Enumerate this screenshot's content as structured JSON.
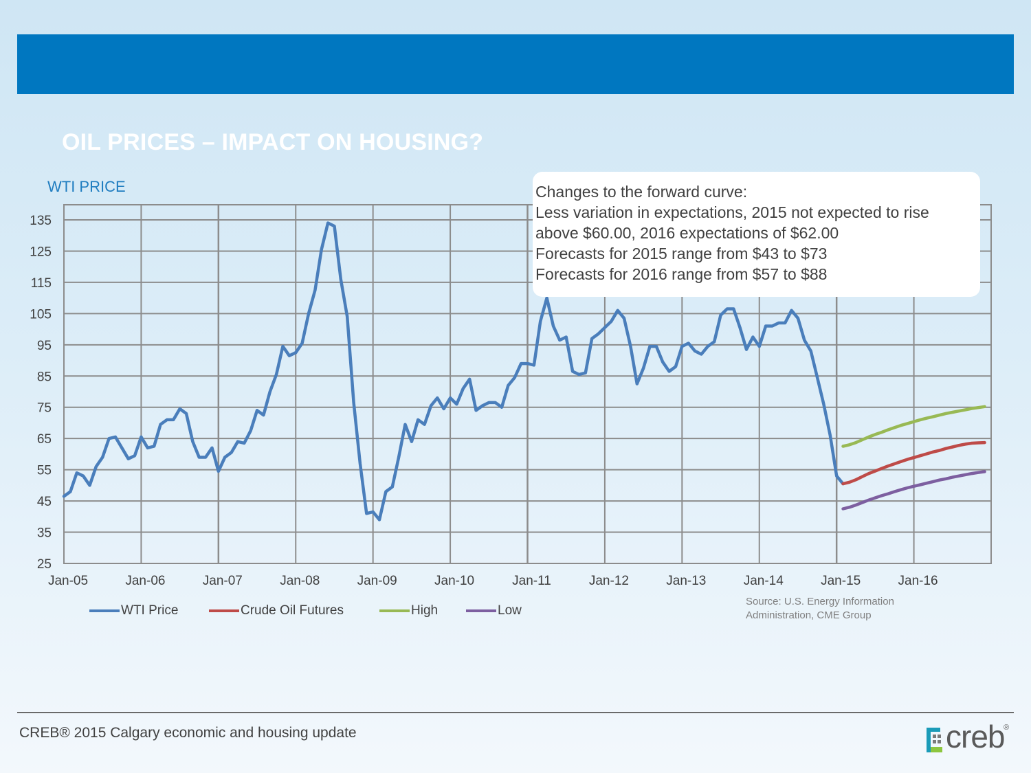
{
  "slide": {
    "title": "OIL PRICES – IMPACT ON HOUSING?",
    "chart_label": "WTI PRICE",
    "footer": "CREB® 2015 Calgary economic and housing update",
    "logo_text": "creb",
    "logo_reg": "®"
  },
  "callout": {
    "lines": [
      "Changes to the forward curve:",
      "Less variation in expectations, 2015 not expected to rise",
      "above $60.00, 2016 expectations of $62.00",
      "Forecasts for 2015 range from $43 to $73",
      "Forecasts for 2016 range from $57 to $88"
    ]
  },
  "source": {
    "lines": [
      "Source: U.S. Energy Information",
      "Administration,  CME Group"
    ]
  },
  "colors": {
    "wti": "#4a7ebb",
    "futures": "#be4b48",
    "high": "#98b954",
    "low": "#7d5fa0",
    "grid": "#8c8c8c",
    "axis_text": "#404040",
    "header_bar": "#0077c0"
  },
  "chart_data": {
    "type": "line",
    "title": "",
    "ylabel": "WTI PRICE",
    "xlabel": "",
    "x_start": "2005-01",
    "x_end": "2016-12",
    "x_tick_labels": [
      "Jan-05",
      "Jan-06",
      "Jan-07",
      "Jan-08",
      "Jan-09",
      "Jan-10",
      "Jan-11",
      "Jan-12",
      "Jan-13",
      "Jan-14",
      "Jan-15",
      "Jan-16"
    ],
    "y_ticks": [
      25,
      35,
      45,
      55,
      65,
      75,
      85,
      95,
      105,
      115,
      125,
      135
    ],
    "ylim": [
      25,
      135
    ],
    "grid": true,
    "legend_position": "bottom",
    "series": [
      {
        "name": "WTI Price",
        "start": "2005-01",
        "values": [
          46.5,
          48,
          54,
          53,
          50,
          56,
          59,
          65,
          65.5,
          62,
          58.5,
          59.5,
          65.5,
          62,
          62.5,
          69.5,
          71,
          71,
          74.5,
          73,
          64,
          59,
          59,
          62,
          54.5,
          59,
          60.5,
          64,
          63.5,
          67.5,
          74,
          72.5,
          80,
          85.5,
          94.5,
          91.5,
          92.5,
          95.5,
          105,
          112.5,
          125.5,
          134,
          133,
          116,
          104,
          76.5,
          57,
          41,
          41.5,
          39,
          48,
          49.5,
          59,
          69.5,
          64,
          71,
          69.5,
          75.5,
          78,
          74.5,
          78,
          76,
          81,
          84,
          74,
          75.5,
          76.5,
          76.5,
          75,
          82,
          84.5,
          89,
          89,
          88.5,
          102.5,
          110,
          101,
          96.5,
          97.5,
          86.5,
          85.5,
          86,
          97,
          98.5,
          100.5,
          102.5,
          106,
          103.5,
          94.5,
          82.5,
          87.5,
          94.5,
          94.5,
          89.5,
          86.5,
          88,
          94.5,
          95.5,
          93,
          92,
          94.5,
          96,
          104.5,
          106.5,
          106.5,
          100.5,
          93.5,
          97.5,
          94.5,
          101,
          101,
          102,
          102,
          106,
          103.5,
          96.5,
          93,
          84.5,
          76,
          66,
          53,
          50.5
        ]
      },
      {
        "name": "Crude Oil Futures",
        "start": "2015-02",
        "values": [
          50.5,
          51,
          51.8,
          52.8,
          53.8,
          54.6,
          55.4,
          56.2,
          56.9,
          57.6,
          58.3,
          58.9,
          59.5,
          60.1,
          60.7,
          61.2,
          61.8,
          62.3,
          62.8,
          63.2,
          63.5,
          63.6,
          63.7
        ]
      },
      {
        "name": "High",
        "start": "2015-02",
        "values": [
          62.5,
          63,
          63.7,
          64.6,
          65.5,
          66.3,
          67,
          67.8,
          68.5,
          69.2,
          69.8,
          70.4,
          71,
          71.5,
          72,
          72.5,
          73,
          73.4,
          73.8,
          74.2,
          74.6,
          74.9,
          75.2
        ]
      },
      {
        "name": "Low",
        "start": "2015-02",
        "values": [
          42.5,
          43,
          43.7,
          44.5,
          45.3,
          46,
          46.7,
          47.3,
          48,
          48.6,
          49.2,
          49.7,
          50.2,
          50.7,
          51.2,
          51.7,
          52.1,
          52.6,
          53,
          53.4,
          53.8,
          54.1,
          54.4
        ]
      }
    ]
  }
}
